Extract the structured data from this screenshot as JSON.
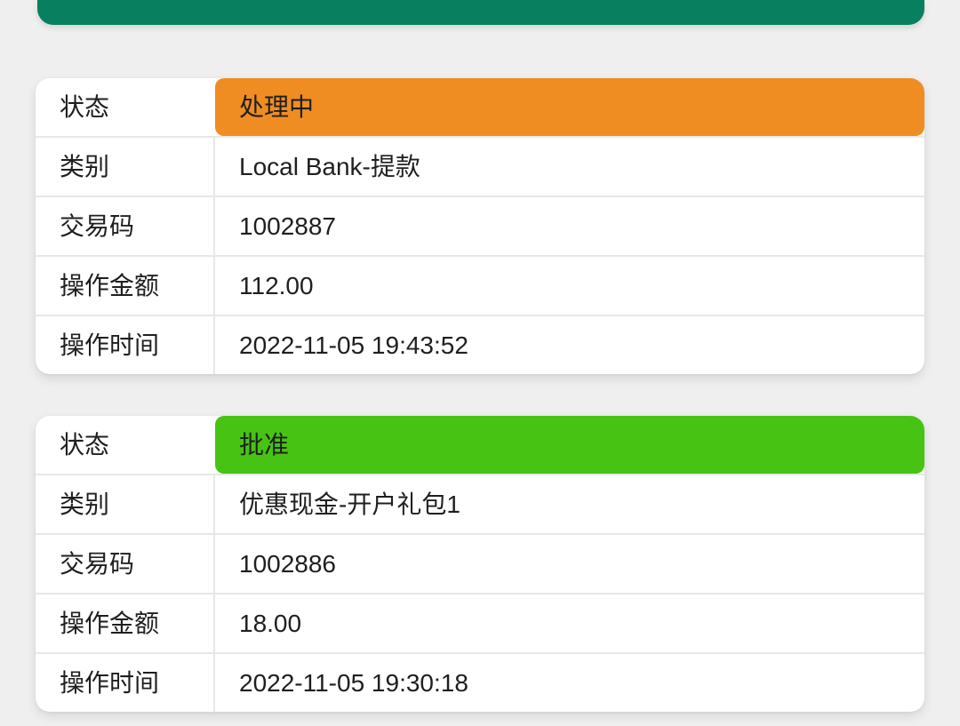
{
  "page": {
    "background": "#efefef"
  },
  "colors": {
    "header_bar": "#087f5e",
    "status_processing": "#ef8d23",
    "status_approved": "#47c314",
    "divider": "#e7e7e7",
    "text": "#1f1f1f",
    "card_bg": "#ffffff"
  },
  "cards": [
    {
      "status_key": "status_processing",
      "rows": [
        {
          "label": "状态",
          "value": "处理中"
        },
        {
          "label": "类别",
          "value": "Local Bank-提款"
        },
        {
          "label": "交易码",
          "value": "1002887"
        },
        {
          "label": "操作金额",
          "value": "112.00"
        },
        {
          "label": "操作时间",
          "value": "2022-11-05 19:43:52"
        }
      ]
    },
    {
      "status_key": "status_approved",
      "rows": [
        {
          "label": "状态",
          "value": "批准"
        },
        {
          "label": "类别",
          "value": "优惠现金-开户礼包1"
        },
        {
          "label": "交易码",
          "value": "1002886"
        },
        {
          "label": "操作金额",
          "value": "18.00"
        },
        {
          "label": "操作时间",
          "value": "2022-11-05 19:30:18"
        }
      ]
    }
  ]
}
